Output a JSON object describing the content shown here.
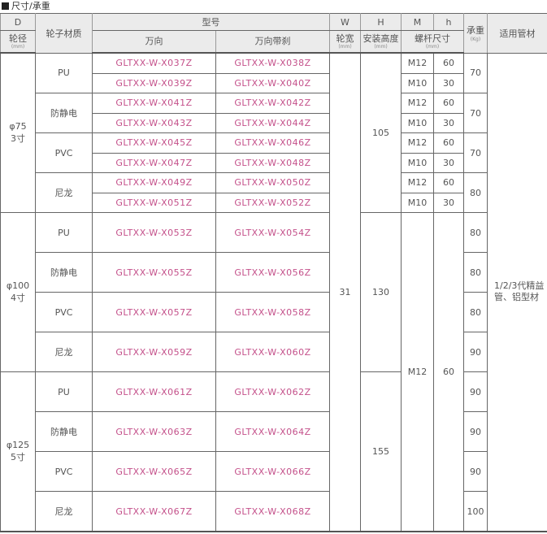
{
  "section_title": "尺寸/承重",
  "header": {
    "D": "D",
    "material": "轮子材质",
    "model": "型号",
    "W": "W",
    "H": "H",
    "M": "M",
    "h": "h",
    "diameter": "轮径",
    "unit": "(mm)",
    "swivel": "万向",
    "swivel_brake": "万向带刹",
    "width": "轮宽",
    "install_height": "安装高度",
    "bolt_size": "螺杆尺寸",
    "load": "承重",
    "load_unit": "(Kg)",
    "tube": "适用管材"
  },
  "W_value": "31",
  "tube_value": "1/2/3代精益管、铝型材",
  "groups": [
    {
      "size": "φ75",
      "inch": "3寸",
      "H": "105",
      "materials": [
        {
          "name": "PU",
          "load": "70",
          "rows": [
            {
              "a": "GLTXX-W-X037Z",
              "b": "GLTXX-W-X038Z",
              "M": "M12",
              "h": "60"
            },
            {
              "a": "GLTXX-W-X039Z",
              "b": "GLTXX-W-X040Z",
              "M": "M10",
              "h": "30"
            }
          ]
        },
        {
          "name": "防静电",
          "load": "70",
          "rows": [
            {
              "a": "GLTXX-W-X041Z",
              "b": "GLTXX-W-X042Z",
              "M": "M12",
              "h": "60"
            },
            {
              "a": "GLTXX-W-X043Z",
              "b": "GLTXX-W-X044Z",
              "M": "M10",
              "h": "30"
            }
          ]
        },
        {
          "name": "PVC",
          "load": "70",
          "rows": [
            {
              "a": "GLTXX-W-X045Z",
              "b": "GLTXX-W-X046Z",
              "M": "M12",
              "h": "60"
            },
            {
              "a": "GLTXX-W-X047Z",
              "b": "GLTXX-W-X048Z",
              "M": "M10",
              "h": "30"
            }
          ]
        },
        {
          "name": "尼龙",
          "load": "80",
          "rows": [
            {
              "a": "GLTXX-W-X049Z",
              "b": "GLTXX-W-X050Z",
              "M": "M12",
              "h": "60"
            },
            {
              "a": "GLTXX-W-X051Z",
              "b": "GLTXX-W-X052Z",
              "M": "M10",
              "h": "30"
            }
          ]
        }
      ]
    },
    {
      "size": "φ100",
      "inch": "4寸",
      "H": "130",
      "materials": [
        {
          "name": "PU",
          "load": "80",
          "rows": [
            {
              "a": "GLTXX-W-X053Z",
              "b": "GLTXX-W-X054Z"
            }
          ]
        },
        {
          "name": "防静电",
          "load": "80",
          "rows": [
            {
              "a": "GLTXX-W-X055Z",
              "b": "GLTXX-W-X056Z"
            }
          ]
        },
        {
          "name": "PVC",
          "load": "80",
          "rows": [
            {
              "a": "GLTXX-W-X057Z",
              "b": "GLTXX-W-X058Z"
            }
          ]
        },
        {
          "name": "尼龙",
          "load": "90",
          "rows": [
            {
              "a": "GLTXX-W-X059Z",
              "b": "GLTXX-W-X060Z"
            }
          ]
        }
      ]
    },
    {
      "size": "φ125",
      "inch": "5寸",
      "H": "155",
      "materials": [
        {
          "name": "PU",
          "load": "90",
          "rows": [
            {
              "a": "GLTXX-W-X061Z",
              "b": "GLTXX-W-X062Z"
            }
          ]
        },
        {
          "name": "防静电",
          "load": "90",
          "rows": [
            {
              "a": "GLTXX-W-X063Z",
              "b": "GLTXX-W-X064Z"
            }
          ]
        },
        {
          "name": "PVC",
          "load": "90",
          "rows": [
            {
              "a": "GLTXX-W-X065Z",
              "b": "GLTXX-W-X066Z"
            }
          ]
        },
        {
          "name": "尼龙",
          "load": "100",
          "rows": [
            {
              "a": "GLTXX-W-X067Z",
              "b": "GLTXX-W-X068Z"
            }
          ]
        }
      ]
    }
  ],
  "shared_M": "M12",
  "shared_h": "60",
  "colors": {
    "model_text": "#c4508a",
    "header_bg": "#ebebeb"
  }
}
